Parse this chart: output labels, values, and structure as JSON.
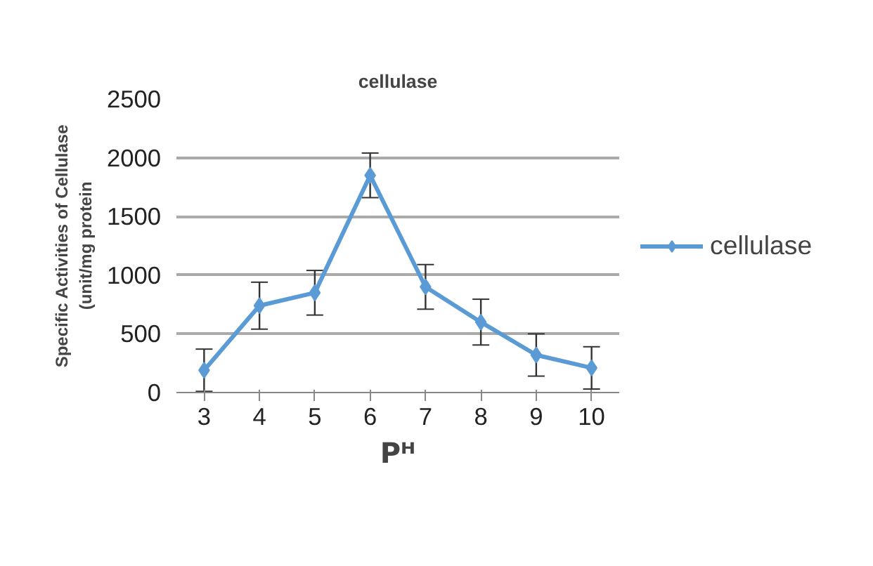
{
  "chart_data": {
    "type": "line",
    "title": "cellulase",
    "xlabel": "Pᴴ",
    "ylabel": "Specific Activities of Cellulase\n(unit/mg protein",
    "categories": [
      "3",
      "4",
      "5",
      "6",
      "7",
      "8",
      "9",
      "10"
    ],
    "series": [
      {
        "name": "cellulase",
        "color": "#5b9bd5",
        "values": [
          190,
          740,
          850,
          1850,
          900,
          600,
          320,
          210
        ],
        "errors": [
          180,
          200,
          190,
          190,
          190,
          195,
          180,
          180
        ]
      }
    ],
    "ylim": [
      0,
      2500
    ],
    "yticks": [
      0,
      500,
      1000,
      1500,
      2000,
      2500
    ],
    "grid": "y",
    "legend": "right",
    "marker": "diamond",
    "line_style": "solid"
  }
}
